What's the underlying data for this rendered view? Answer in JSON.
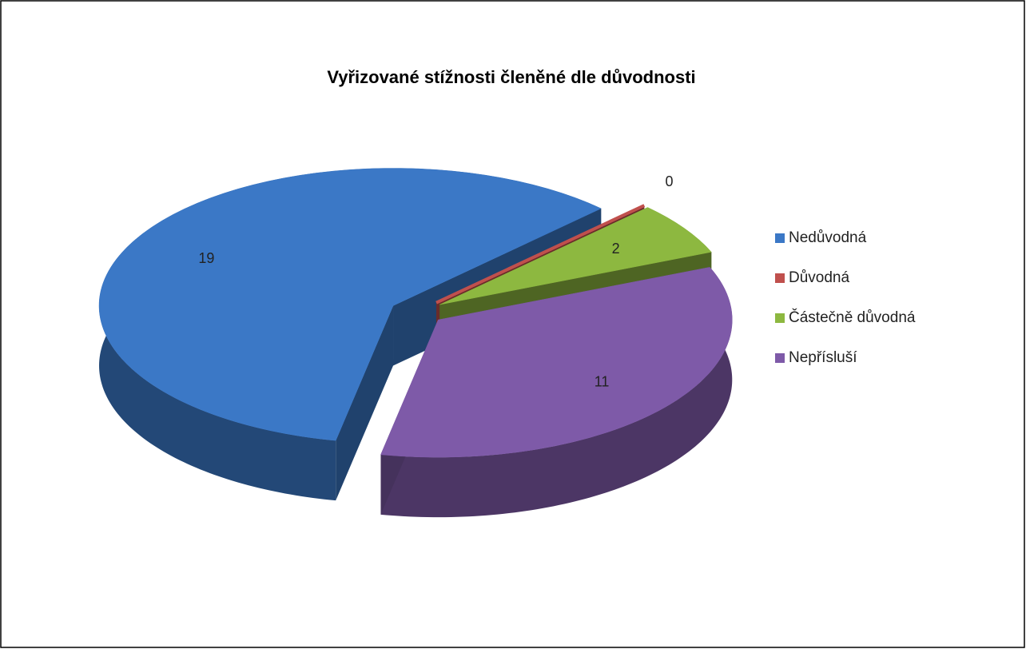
{
  "chart_data": {
    "type": "pie3d",
    "title": "Vyřizované stížnosti členěné dle důvodnosti",
    "categories": [
      "Nedůvodná",
      "Důvodná",
      "Částečně důvodná",
      "Nepřísluší"
    ],
    "values": [
      19,
      0,
      2,
      11
    ],
    "colors": [
      "#3b78c6",
      "#c0504d",
      "#8db840",
      "#7e5aa8"
    ],
    "legend": "right",
    "exploded": true
  }
}
